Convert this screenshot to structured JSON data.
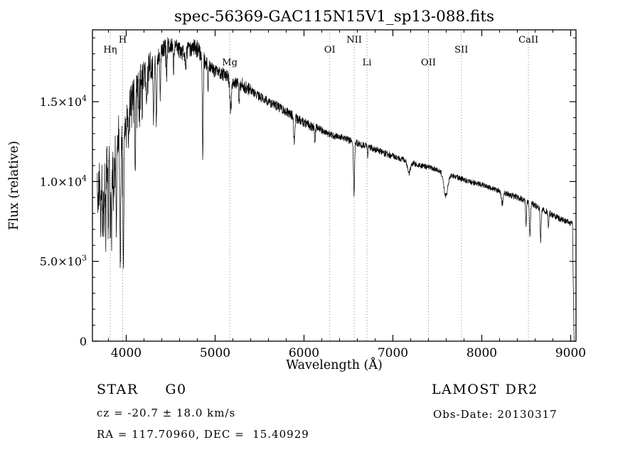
{
  "chart_data": {
    "type": "line",
    "title": "spec-56369-GAC115N15V1_sp13-088.fits",
    "xlabel": "Wavelength (Å)",
    "ylabel": "Flux (relative)",
    "xlim": [
      3620,
      9060
    ],
    "ylim": [
      0,
      19500
    ],
    "xticks": [
      4000,
      5000,
      6000,
      7000,
      8000,
      9000
    ],
    "x_minor_step": 200,
    "y_minor_step": 1000,
    "yticks": [
      {
        "value": 0,
        "label": "0",
        "sup": ""
      },
      {
        "value": 5000,
        "label": "5.0×10",
        "sup": "3"
      },
      {
        "value": 10000,
        "label": "1.0×10",
        "sup": "4"
      },
      {
        "value": 15000,
        "label": "1.5×10",
        "sup": "4"
      }
    ],
    "grid": "off",
    "legend": "none",
    "line_color": "#000000",
    "marker_line_color": "#888888",
    "line_markers": [
      {
        "label": "Hη",
        "wavelength": 3820,
        "row": 1
      },
      {
        "label": "H",
        "wavelength": 3960,
        "row": 0
      },
      {
        "label": "Mg",
        "wavelength": 5165,
        "row": 2
      },
      {
        "label": "OI",
        "wavelength": 6290,
        "row": 1
      },
      {
        "label": "NII",
        "wavelength": 6565,
        "row": 0
      },
      {
        "label": "Li",
        "wavelength": 6708,
        "row": 2
      },
      {
        "label": "OII",
        "wavelength": 7400,
        "row": 2
      },
      {
        "label": "SII",
        "wavelength": 7770,
        "row": 1
      },
      {
        "label": "CaII",
        "wavelength": 8525,
        "row": 0
      }
    ],
    "data_start": 3672,
    "cutoff": {
      "start": 9020,
      "end": 9038
    },
    "continuum": [
      [
        3690,
        9500
      ],
      [
        3720,
        10200
      ],
      [
        3760,
        10500
      ],
      [
        3800,
        11500
      ],
      [
        3850,
        11000
      ],
      [
        3900,
        12500
      ],
      [
        3950,
        13000
      ],
      [
        4000,
        14000
      ],
      [
        4050,
        15000
      ],
      [
        4100,
        15800
      ],
      [
        4150,
        16300
      ],
      [
        4200,
        16800
      ],
      [
        4250,
        17200
      ],
      [
        4300,
        17400
      ],
      [
        4350,
        17800
      ],
      [
        4400,
        18200
      ],
      [
        4450,
        18500
      ],
      [
        4500,
        18600
      ],
      [
        4550,
        18400
      ],
      [
        4600,
        18200
      ],
      [
        4650,
        18100
      ],
      [
        4700,
        18200
      ],
      [
        4750,
        18400
      ],
      [
        4800,
        18300
      ],
      [
        4850,
        17900
      ],
      [
        4900,
        17400
      ],
      [
        4950,
        17100
      ],
      [
        5000,
        16900
      ],
      [
        5100,
        16700
      ],
      [
        5200,
        16300
      ],
      [
        5300,
        16100
      ],
      [
        5400,
        15700
      ],
      [
        5500,
        15300
      ],
      [
        5600,
        15000
      ],
      [
        5700,
        14700
      ],
      [
        5800,
        14400
      ],
      [
        5900,
        14000
      ],
      [
        6000,
        13700
      ],
      [
        6100,
        13400
      ],
      [
        6200,
        13200
      ],
      [
        6300,
        12900
      ],
      [
        6400,
        12800
      ],
      [
        6500,
        12600
      ],
      [
        6600,
        12400
      ],
      [
        6700,
        12200
      ],
      [
        6800,
        12000
      ],
      [
        6900,
        11800
      ],
      [
        7000,
        11600
      ],
      [
        7100,
        11400
      ],
      [
        7200,
        11200
      ],
      [
        7300,
        11000
      ],
      [
        7400,
        10900
      ],
      [
        7500,
        10700
      ],
      [
        7600,
        10500
      ],
      [
        7700,
        10300
      ],
      [
        7800,
        10100
      ],
      [
        7900,
        9950
      ],
      [
        8000,
        9800
      ],
      [
        8100,
        9600
      ],
      [
        8200,
        9400
      ],
      [
        8300,
        9200
      ],
      [
        8400,
        9000
      ],
      [
        8500,
        8800
      ],
      [
        8600,
        8500
      ],
      [
        8700,
        8200
      ],
      [
        8800,
        7900
      ],
      [
        8900,
        7600
      ],
      [
        9000,
        7400
      ],
      [
        9060,
        7200
      ]
    ],
    "absorption_features": [
      {
        "center": 3712,
        "depth": 2500,
        "sigma": 4
      },
      {
        "center": 3734,
        "depth": 3000,
        "sigma": 4
      },
      {
        "center": 3750,
        "depth": 3500,
        "sigma": 4
      },
      {
        "center": 3770,
        "depth": 3800,
        "sigma": 4
      },
      {
        "center": 3798,
        "depth": 4200,
        "sigma": 4
      },
      {
        "center": 3820,
        "depth": 4500,
        "sigma": 4
      },
      {
        "center": 3835,
        "depth": 4500,
        "sigma": 4
      },
      {
        "center": 3860,
        "depth": 3000,
        "sigma": 4
      },
      {
        "center": 3889,
        "depth": 5200,
        "sigma": 5
      },
      {
        "center": 3933,
        "depth": 7800,
        "sigma": 5
      },
      {
        "center": 3968,
        "depth": 9200,
        "sigma": 5
      },
      {
        "center": 4026,
        "depth": 2600,
        "sigma": 4
      },
      {
        "center": 4101,
        "depth": 4800,
        "sigma": 5
      },
      {
        "center": 4144,
        "depth": 2200,
        "sigma": 4
      },
      {
        "center": 4227,
        "depth": 2800,
        "sigma": 4
      },
      {
        "center": 4308,
        "depth": 3600,
        "sigma": 6
      },
      {
        "center": 4340,
        "depth": 4200,
        "sigma": 5
      },
      {
        "center": 4383,
        "depth": 2600,
        "sigma": 4
      },
      {
        "center": 4455,
        "depth": 1800,
        "sigma": 4
      },
      {
        "center": 4531,
        "depth": 1600,
        "sigma": 4
      },
      {
        "center": 4668,
        "depth": 1500,
        "sigma": 4
      },
      {
        "center": 4861,
        "depth": 6500,
        "sigma": 5
      },
      {
        "center": 4920,
        "depth": 1400,
        "sigma": 4
      },
      {
        "center": 5175,
        "depth": 1900,
        "sigma": 9
      },
      {
        "center": 5270,
        "depth": 1300,
        "sigma": 5
      },
      {
        "center": 5890,
        "depth": 1500,
        "sigma": 7
      },
      {
        "center": 6122,
        "depth": 800,
        "sigma": 5
      },
      {
        "center": 6563,
        "depth": 3300,
        "sigma": 6
      },
      {
        "center": 6717,
        "depth": 600,
        "sigma": 4
      },
      {
        "center": 7180,
        "depth": 700,
        "sigma": 15
      },
      {
        "center": 7594,
        "depth": 1400,
        "sigma": 22
      },
      {
        "center": 8230,
        "depth": 700,
        "sigma": 10
      },
      {
        "center": 8498,
        "depth": 1500,
        "sigma": 5
      },
      {
        "center": 8542,
        "depth": 2100,
        "sigma": 6
      },
      {
        "center": 8662,
        "depth": 2000,
        "sigma": 6
      },
      {
        "center": 8750,
        "depth": 900,
        "sigma": 5
      }
    ],
    "noise_profile": [
      {
        "upto": 3950,
        "amp": 1500
      },
      {
        "upto": 4300,
        "amp": 950
      },
      {
        "upto": 4900,
        "amp": 550
      },
      {
        "upto": 5400,
        "amp": 420
      },
      {
        "upto": 6200,
        "amp": 300
      },
      {
        "upto": 7000,
        "amp": 220
      },
      {
        "upto": 8200,
        "amp": 170
      },
      {
        "upto": 9100,
        "amp": 190
      }
    ]
  },
  "footer": {
    "class_label": "STAR     G0",
    "survey": "LAMOST DR2",
    "cz": "cz = -20.7 ± 18.0 km/s",
    "obs_date": "Obs-Date: 20130317",
    "radec": "RA = 117.70960, DEC =  15.40929"
  }
}
